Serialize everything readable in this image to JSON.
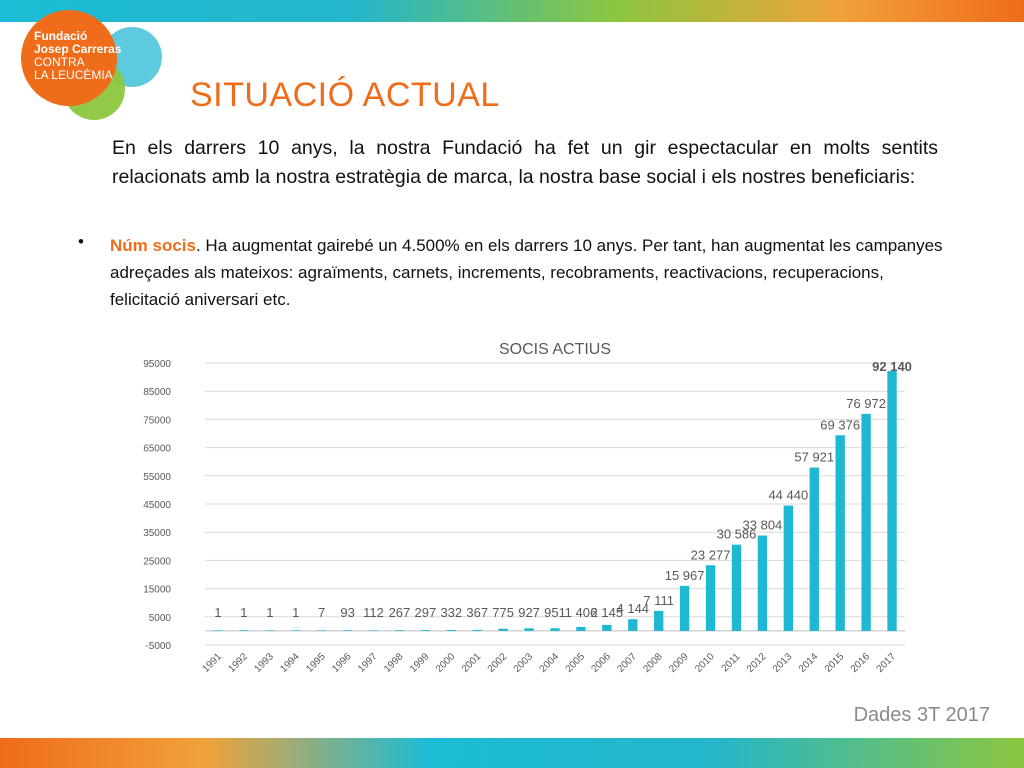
{
  "logo": {
    "lines": [
      "Fundació",
      "Josep Carreras",
      "CONTRA",
      "LA LEUCÈMIA"
    ]
  },
  "title": "SITUACIÓ ACTUAL",
  "intro": "En els darrers 10 anys, la nostra Fundació ha fet un gir espectacular en molts sentits relacionats amb la nostra estratègia de marca, la nostra base social i els nostres beneficiaris:",
  "bullet": {
    "symbol": "•",
    "lead": "Núm socis",
    "text": ". Ha augmentat gairebé un 4.500% en els darrers 10 anys. Per tant, han augmentat les campanyes adreçades als mateixos: agraïments, carnets, increments, recobraments, reactivacions, recuperacions, felicitació aniversari etc."
  },
  "footer_note": "Dades 3T 2017",
  "colors": {
    "orange": "#ef6c1a",
    "cyan": "#1bbcd6",
    "green": "#8cc63f",
    "bar": "#1fb8d3",
    "grid": "#d9d9d9",
    "axis_text": "#595959"
  },
  "chart_data": {
    "type": "bar",
    "title": "SOCIS ACTIUS",
    "categories": [
      "1991",
      "1992",
      "1993",
      "1994",
      "1995",
      "1996",
      "1997",
      "1998",
      "1999",
      "2000",
      "2001",
      "2002",
      "2003",
      "2004",
      "2005",
      "2006",
      "2007",
      "2008",
      "2009",
      "2010",
      "2011",
      "2012",
      "2013",
      "2014",
      "2015",
      "2016",
      "2017"
    ],
    "values": [
      1,
      1,
      1,
      1,
      7,
      93,
      112,
      267,
      297,
      332,
      367,
      775,
      927,
      951,
      1406,
      2145,
      4144,
      7111,
      15967,
      23277,
      30586,
      33804,
      44440,
      57921,
      69376,
      76972,
      92140
    ],
    "data_labels": [
      "1",
      "1",
      "1",
      "1",
      "7",
      "93",
      "112",
      "267",
      "297",
      "332",
      "367",
      "775",
      "927",
      "951",
      "1 406",
      "2 145",
      "4 144",
      "7 111",
      "15 967",
      "23 277",
      "30 586",
      "33 804",
      "44 440",
      "57 921",
      "69 376",
      "76 972",
      "92 140"
    ],
    "y_ticks": [
      "-5000",
      "5000",
      "15000",
      "25000",
      "35000",
      "45000",
      "55000",
      "65000",
      "75000",
      "85000",
      "95000"
    ],
    "ylim": [
      -5000,
      95000
    ],
    "grid": true,
    "legend": "none"
  }
}
